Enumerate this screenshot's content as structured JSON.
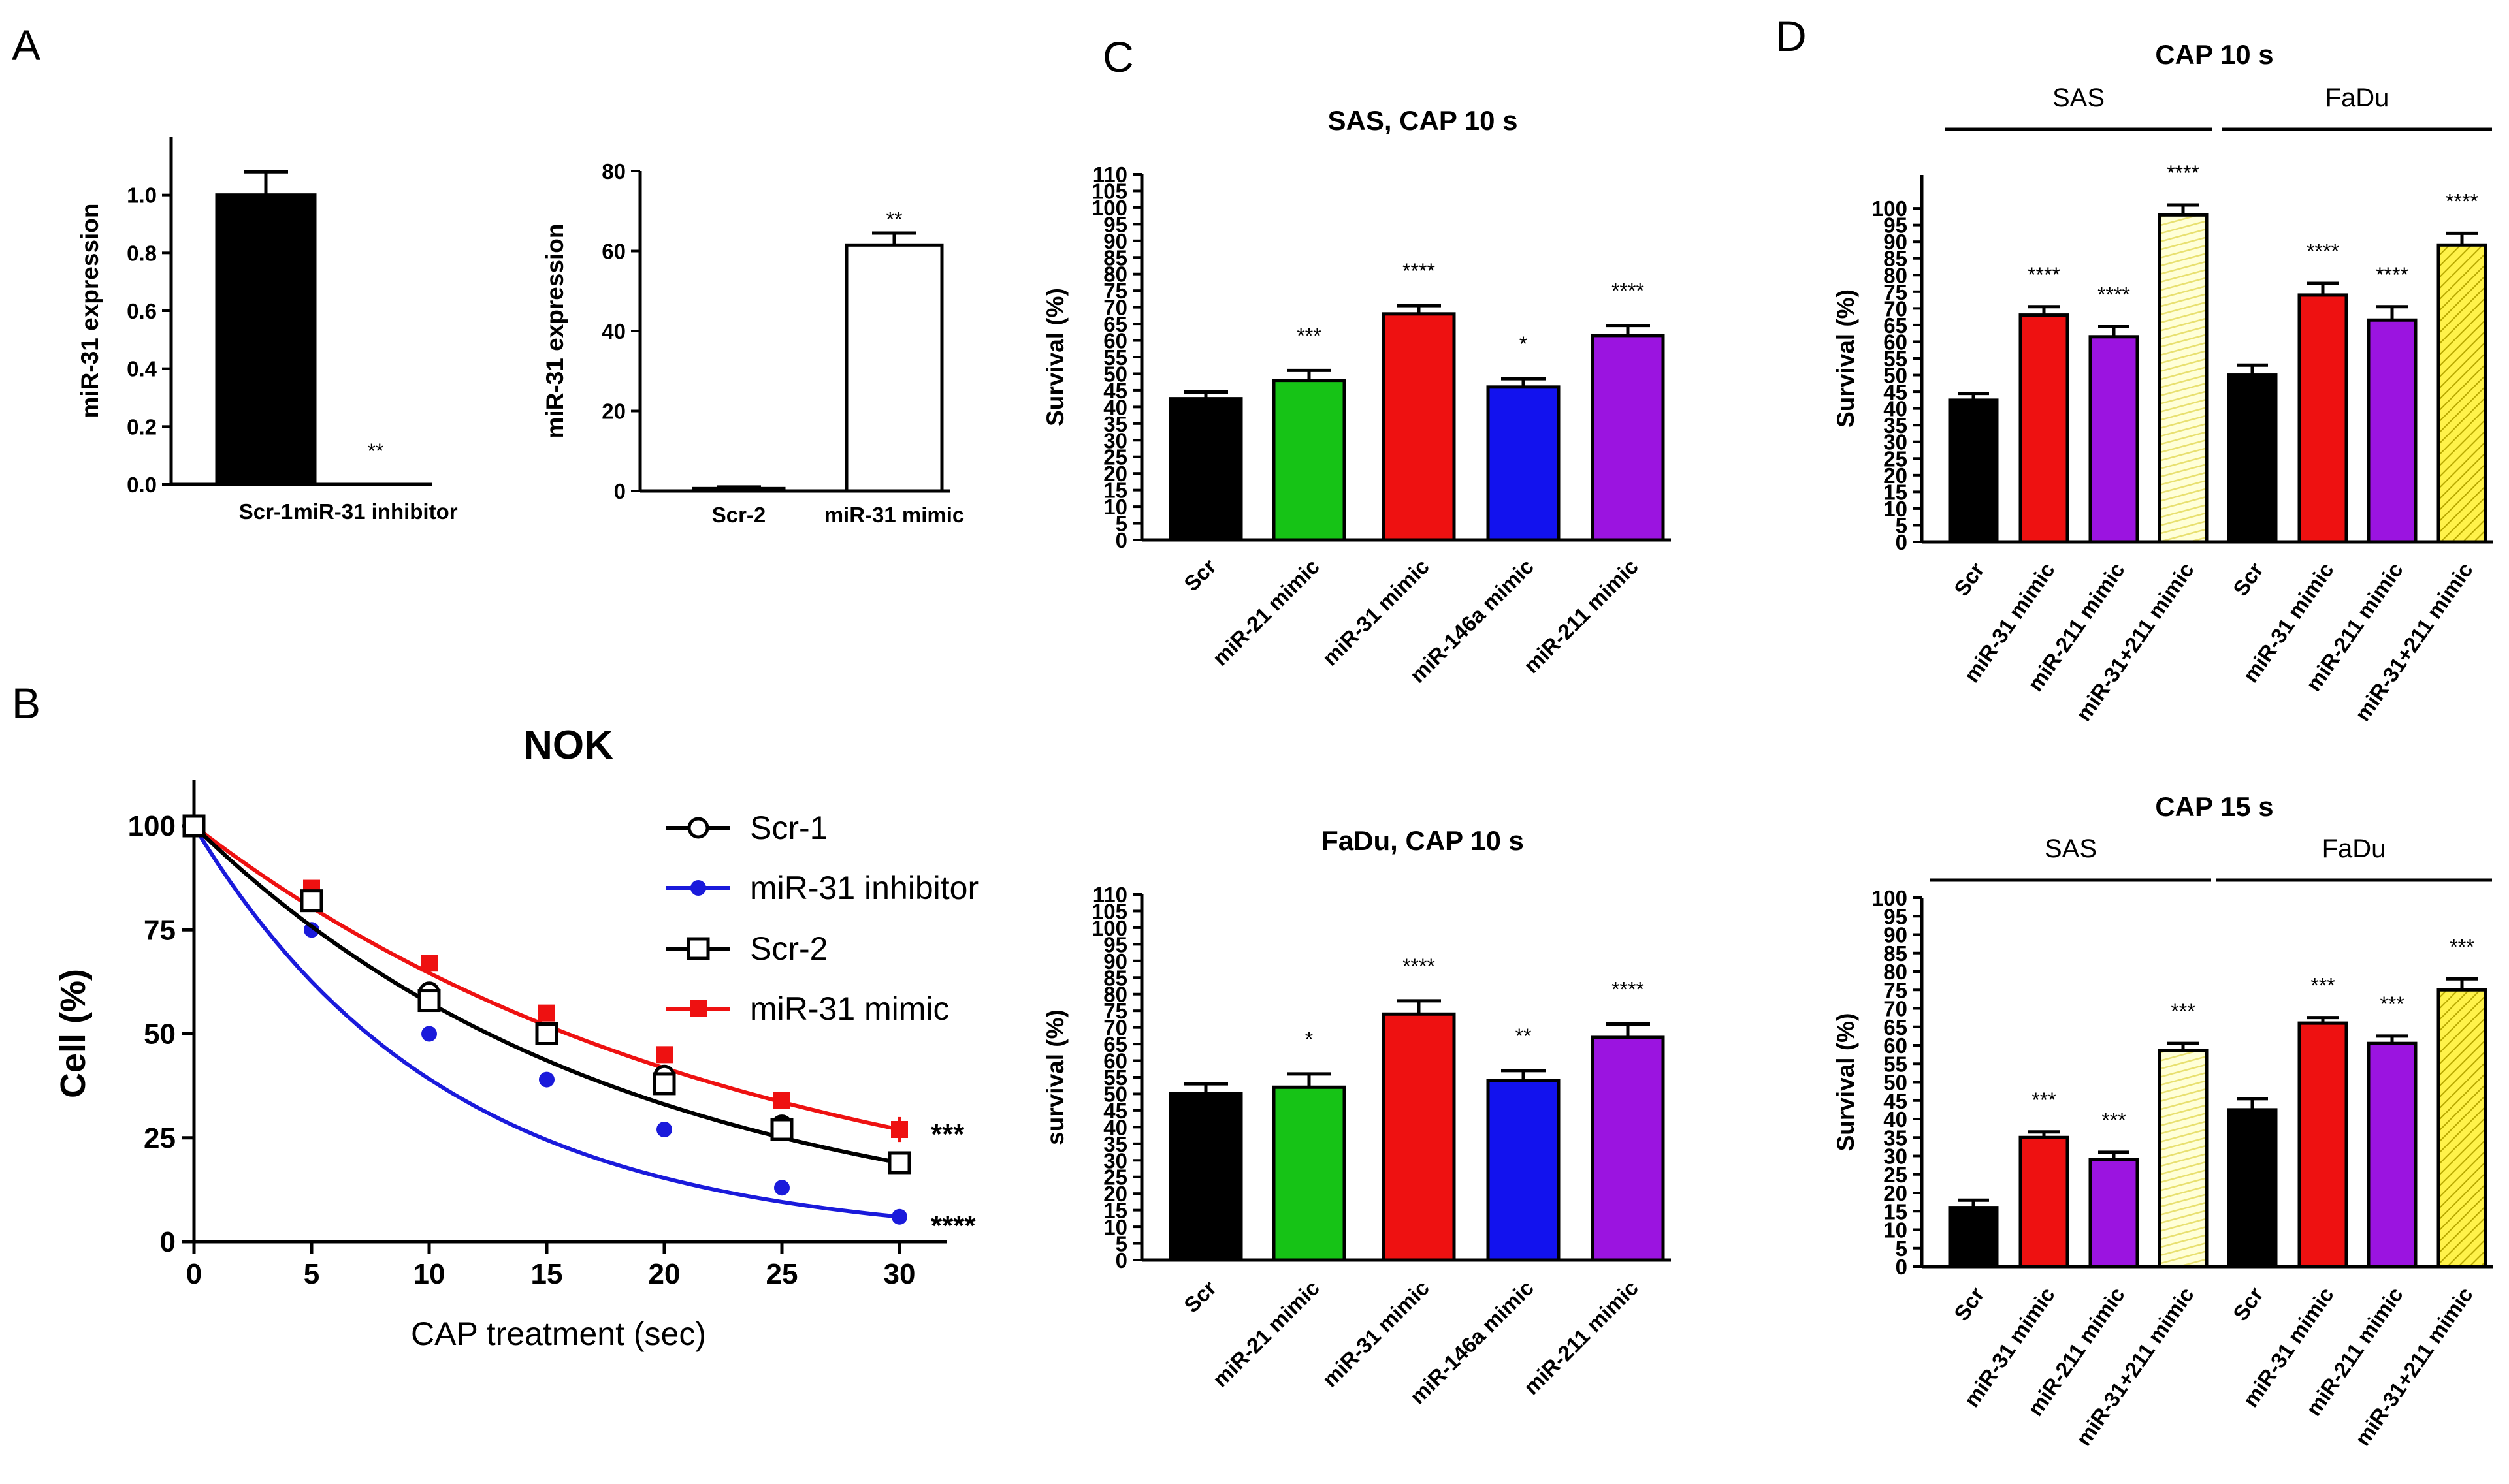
{
  "panel_labels": [
    "A",
    "B",
    "C",
    "D"
  ],
  "chart_data": [
    {
      "id": "A1",
      "type": "bar",
      "ylabel": "miR-31 expression",
      "ylim": [
        0,
        1.2
      ],
      "yticks": [
        "0.0",
        "0.2",
        "0.4",
        "0.6",
        "0.8",
        "1.0"
      ],
      "categories": [
        "Scr-1",
        "miR-31 inhibitor"
      ],
      "values": [
        1.0,
        0.0
      ],
      "errors": [
        0.08,
        0.0
      ],
      "colors": [
        "#000000",
        "#ffffff"
      ],
      "annotations": [
        "",
        "**"
      ]
    },
    {
      "id": "A2",
      "type": "bar",
      "ylabel": "miR-31 expression",
      "ylim": [
        0,
        80
      ],
      "yticks": [
        "0",
        "20",
        "40",
        "60",
        "80"
      ],
      "categories": [
        "Scr-2",
        "miR-31 mimic"
      ],
      "values": [
        0.6,
        61.5
      ],
      "errors": [
        0.4,
        3.0
      ],
      "colors": [
        "#000000",
        "#ffffff"
      ],
      "annotations": [
        "",
        "**"
      ]
    },
    {
      "id": "B",
      "type": "line",
      "title": "NOK",
      "xlabel": "CAP treatment (sec)",
      "ylabel": "Cell (%)",
      "xlim": [
        0,
        32
      ],
      "ylim": [
        0,
        110
      ],
      "xticks": [
        "0",
        "5",
        "10",
        "15",
        "20",
        "25",
        "30"
      ],
      "yticks": [
        "0",
        "25",
        "50",
        "75",
        "100"
      ],
      "x": [
        0,
        5,
        10,
        15,
        20,
        25,
        30
      ],
      "series": [
        {
          "name": "Scr-1",
          "values": [
            100,
            82,
            60,
            50,
            40,
            28,
            19
          ],
          "color": "#000000",
          "marker": "circle-open"
        },
        {
          "name": "miR-31 inhibitor",
          "values": [
            100,
            75,
            50,
            39,
            27,
            13,
            6
          ],
          "color": "#1a1adb",
          "marker": "circle"
        },
        {
          "name": "Scr-2",
          "values": [
            100,
            82,
            58,
            50,
            38,
            27,
            19
          ],
          "color": "#000000",
          "marker": "square-open"
        },
        {
          "name": "miR-31 mimic",
          "values": [
            100,
            85,
            67,
            55,
            45,
            34,
            27
          ],
          "color": "#ee1111",
          "marker": "square"
        }
      ],
      "annotations": [
        {
          "text": "***",
          "y": 27
        },
        {
          "text": "****",
          "y": 5
        }
      ]
    },
    {
      "id": "C1",
      "type": "bar",
      "title": "SAS, CAP 10 s",
      "ylabel": "Survival (%)",
      "ylim": [
        0,
        110
      ],
      "yticks": [
        "0",
        "5",
        "10",
        "15",
        "20",
        "25",
        "30",
        "35",
        "40",
        "45",
        "50",
        "55",
        "60",
        "65",
        "70",
        "75",
        "80",
        "85",
        "90",
        "95",
        "100",
        "105",
        "110"
      ],
      "categories": [
        "Scr",
        "miR-21 mimic",
        "miR-31 mimic",
        "miR-146a mimic",
        "miR-211 mimic"
      ],
      "values": [
        42.5,
        48,
        68,
        46,
        61.5
      ],
      "errors": [
        2,
        3,
        2.5,
        2.5,
        3
      ],
      "colors": [
        "#000000",
        "#16c316",
        "#ee1111",
        "#1212ee",
        "#9b14e0"
      ],
      "annotations": [
        "",
        "***",
        "****",
        "*",
        "****"
      ]
    },
    {
      "id": "C2",
      "type": "bar",
      "title": "FaDu, CAP 10 s",
      "ylabel": "survival (%)",
      "ylim": [
        0,
        110
      ],
      "yticks": [
        "0",
        "5",
        "10",
        "15",
        "20",
        "25",
        "30",
        "35",
        "40",
        "45",
        "50",
        "55",
        "60",
        "65",
        "70",
        "75",
        "80",
        "85",
        "90",
        "95",
        "100",
        "105",
        "110"
      ],
      "categories": [
        "Scr",
        "miR-21 mimic",
        "miR-31 mimic",
        "miR-146a mimic",
        "miR-211 mimic"
      ],
      "values": [
        50,
        52,
        74,
        54,
        67
      ],
      "errors": [
        3,
        4,
        4,
        3,
        4
      ],
      "colors": [
        "#000000",
        "#16c316",
        "#ee1111",
        "#1212ee",
        "#9b14e0"
      ],
      "annotations": [
        "",
        "*",
        "****",
        "**",
        "****"
      ]
    },
    {
      "id": "D1",
      "type": "bar",
      "title": "CAP 10 s",
      "ylabel": "Survival (%)",
      "groups": [
        "SAS",
        "FaDu"
      ],
      "ylim": [
        0,
        110
      ],
      "yticks": [
        "0",
        "5",
        "10",
        "15",
        "20",
        "25",
        "30",
        "35",
        "40",
        "45",
        "50",
        "55",
        "60",
        "65",
        "70",
        "75",
        "80",
        "85",
        "90",
        "95",
        "100"
      ],
      "categories": [
        "Scr",
        "miR-31 mimic",
        "miR-211 mimic",
        "miR-31+211 mimic",
        "Scr",
        "miR-31 mimic",
        "miR-211 mimic",
        "miR-31+211 mimic"
      ],
      "values": [
        42.5,
        68,
        61.5,
        98,
        50,
        74,
        66.5,
        89
      ],
      "errors": [
        2,
        2.5,
        3,
        3,
        3,
        3.5,
        4,
        3.5
      ],
      "colors": [
        "#000000",
        "#ee1111",
        "#9b14e0",
        "#ffffd0",
        "#000000",
        "#ee1111",
        "#9b14e0",
        "#ffef3a"
      ],
      "annotations": [
        "",
        "****",
        "****",
        "****",
        "",
        "****",
        "****",
        "****"
      ]
    },
    {
      "id": "D2",
      "type": "bar",
      "title": "CAP 15 s",
      "ylabel": "Survival (%)",
      "groups": [
        "SAS",
        "FaDu"
      ],
      "ylim": [
        0,
        100
      ],
      "yticks": [
        "0",
        "5",
        "10",
        "15",
        "20",
        "25",
        "30",
        "35",
        "40",
        "45",
        "50",
        "55",
        "60",
        "65",
        "70",
        "75",
        "80",
        "85",
        "90",
        "95",
        "100"
      ],
      "categories": [
        "Scr",
        "miR-31 mimic",
        "miR-211 mimic",
        "miR-31+211 mimic",
        "Scr",
        "miR-31 mimic",
        "miR-211 mimic",
        "miR-31+211 mimic"
      ],
      "values": [
        16,
        35,
        29,
        58.5,
        42.5,
        66,
        60.5,
        75
      ],
      "errors": [
        2,
        1.5,
        2,
        2,
        3,
        1.5,
        2,
        3
      ],
      "colors": [
        "#000000",
        "#ee1111",
        "#9b14e0",
        "#ffffd0",
        "#000000",
        "#ee1111",
        "#9b14e0",
        "#ffef3a"
      ],
      "annotations": [
        "",
        "***",
        "***",
        "***",
        "",
        "***",
        "***",
        "***"
      ]
    }
  ]
}
